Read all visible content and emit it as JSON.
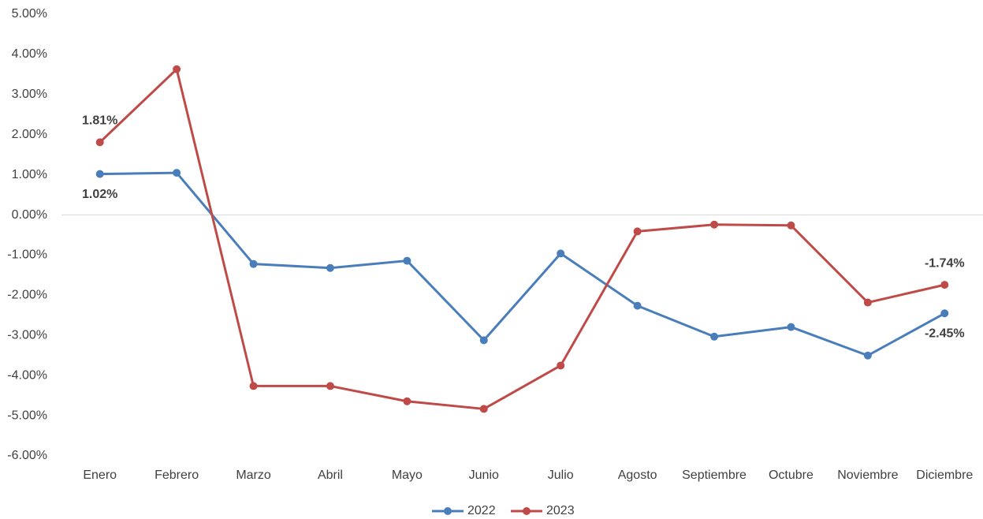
{
  "chart_data": {
    "type": "line",
    "categories": [
      "Enero",
      "Febrero",
      "Marzo",
      "Abril",
      "Mayo",
      "Junio",
      "Julio",
      "Agosto",
      "Septiembre",
      "Octubre",
      "Noviembre",
      "Diciembre"
    ],
    "series": [
      {
        "name": "2022",
        "color": "#4a7ebb",
        "values": [
          1.02,
          1.05,
          -1.22,
          -1.32,
          -1.14,
          -3.12,
          -0.96,
          -2.26,
          -3.03,
          -2.79,
          -3.5,
          -2.45
        ],
        "value_labels": [
          "1.02%",
          null,
          null,
          null,
          null,
          null,
          null,
          null,
          null,
          null,
          null,
          "-2.45%"
        ]
      },
      {
        "name": "2023",
        "color": "#be4b48",
        "values": [
          1.81,
          3.63,
          -4.26,
          -4.26,
          -4.64,
          -4.83,
          -3.75,
          -0.41,
          -0.24,
          -0.26,
          -2.18,
          -1.74
        ],
        "value_labels": [
          "1.81%",
          null,
          null,
          null,
          null,
          null,
          null,
          null,
          null,
          null,
          null,
          "-1.74%"
        ]
      }
    ],
    "ylim": [
      -6,
      5
    ],
    "yticks": [
      {
        "value": -6,
        "label": "-6.00%"
      },
      {
        "value": -5,
        "label": "-5.00%"
      },
      {
        "value": -4,
        "label": "-4.00%"
      },
      {
        "value": -3,
        "label": "-3.00%"
      },
      {
        "value": -2,
        "label": "-2.00%"
      },
      {
        "value": -1,
        "label": "-1.00%"
      },
      {
        "value": 0,
        "label": "0.00%"
      },
      {
        "value": 1,
        "label": "1.00%"
      },
      {
        "value": 2,
        "label": "2.00%"
      },
      {
        "value": 3,
        "label": "3.00%"
      },
      {
        "value": 4,
        "label": "4.00%"
      },
      {
        "value": 5,
        "label": "5.00%"
      }
    ],
    "grid": false,
    "legend": "bottom"
  }
}
